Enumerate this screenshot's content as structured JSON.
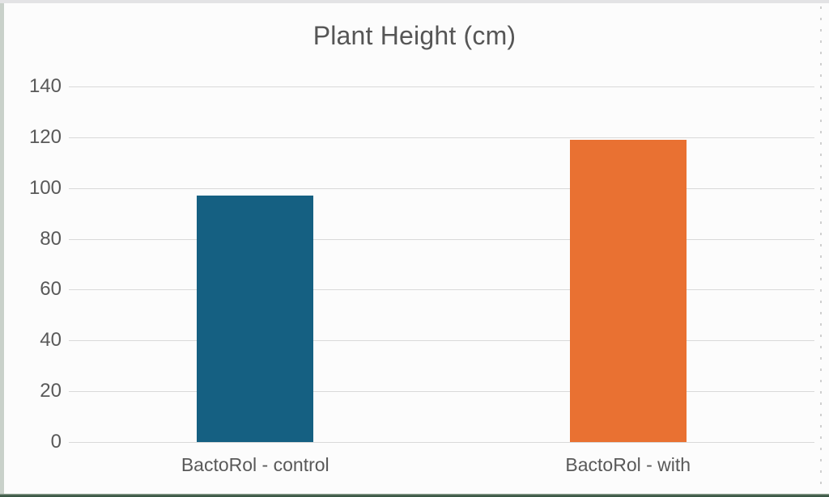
{
  "frame": {
    "background": "#FCFCFC",
    "top_strip_color": "#E3E3E5",
    "left_strip_color": "#C9D1CA",
    "bottom_strip_color": "#3B5745"
  },
  "chart_data": {
    "type": "bar",
    "title": "Plant Height (cm)",
    "categories": [
      "BactoRol - control",
      "BactoRol - with"
    ],
    "values": [
      97,
      119
    ],
    "bar_colors": [
      "#156082",
      "#E97132"
    ],
    "xlabel": "",
    "ylabel": "",
    "ylim": [
      0,
      140
    ],
    "yticks": [
      0,
      20,
      40,
      60,
      80,
      100,
      120,
      140
    ],
    "grid": "horizontal",
    "gridline_color": "#D9D9D9",
    "text_color": "#595959",
    "legend": "none"
  }
}
